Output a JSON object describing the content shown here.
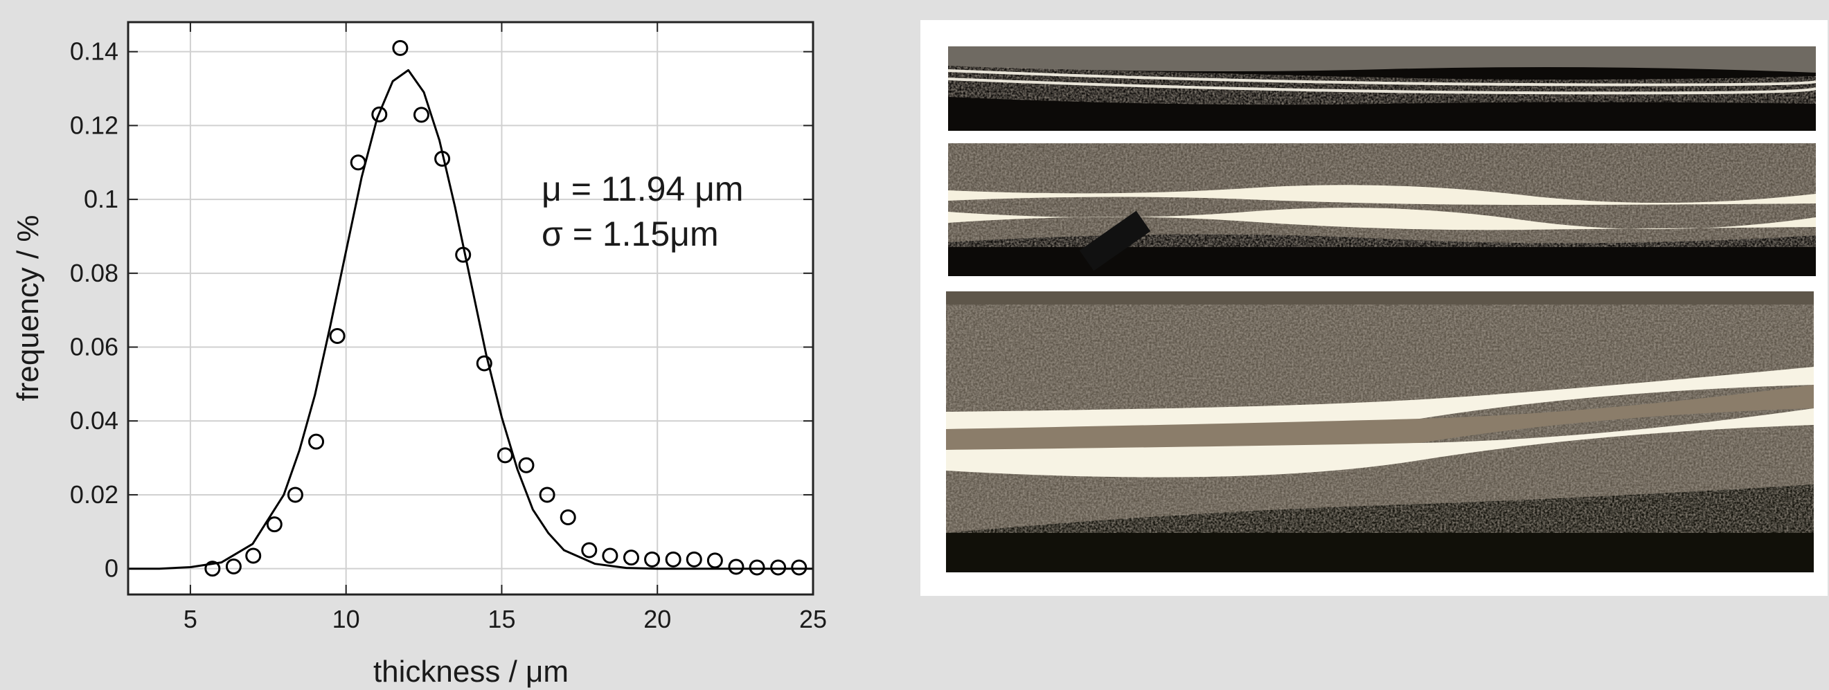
{
  "chart_data": {
    "type": "scatter",
    "xlabel": "thickness / μm",
    "ylabel": "frequency / %",
    "annotations": [
      "μ = 11.94 μm",
      "σ = 1.15μm"
    ],
    "xlim": [
      3,
      25
    ],
    "ylim": [
      -0.007,
      0.148
    ],
    "xticks": [
      5,
      10,
      15,
      20,
      25
    ],
    "yticks": [
      0,
      0.02,
      0.04,
      0.06,
      0.08,
      0.1,
      0.12,
      0.14
    ],
    "grid": true,
    "series": [
      {
        "type": "scatter",
        "color": "#000000",
        "x": [
          5.71,
          6.39,
          7.02,
          7.7,
          8.37,
          9.04,
          9.72,
          10.39,
          11.07,
          11.74,
          12.42,
          13.09,
          13.76,
          14.44,
          15.11,
          15.79,
          16.46,
          17.13,
          17.81,
          18.48,
          19.16,
          19.83,
          20.51,
          21.18,
          21.85,
          22.53,
          23.2,
          23.88,
          24.55
        ],
        "values": [
          0,
          0.0006,
          0.0035,
          0.012,
          0.02,
          0.0344,
          0.063,
          0.11,
          0.123,
          0.141,
          0.1229,
          0.111,
          0.085,
          0.0556,
          0.0307,
          0.028,
          0.02,
          0.0139,
          0.005,
          0.0035,
          0.003,
          0.0025,
          0.0025,
          0.0025,
          0.0022,
          0.0005,
          0.0003,
          0.0003,
          0.0003
        ]
      },
      {
        "type": "line",
        "color": "#000000",
        "x": [
          3,
          4,
          5,
          6,
          7,
          8,
          8.5,
          9,
          9.5,
          10,
          10.5,
          11,
          11.5,
          12,
          12.5,
          13,
          13.5,
          14,
          14.5,
          15,
          15.5,
          16,
          16.5,
          17,
          18,
          19,
          20,
          21,
          22,
          23,
          24,
          25
        ],
        "values": [
          0,
          0,
          0.0004,
          0.0017,
          0.0067,
          0.02,
          0.032,
          0.047,
          0.066,
          0.086,
          0.106,
          0.122,
          0.132,
          0.135,
          0.129,
          0.116,
          0.098,
          0.078,
          0.058,
          0.041,
          0.027,
          0.016,
          0.0096,
          0.005,
          0.0013,
          0.0002,
          0,
          0,
          0,
          0,
          0,
          0
        ]
      }
    ]
  }
}
